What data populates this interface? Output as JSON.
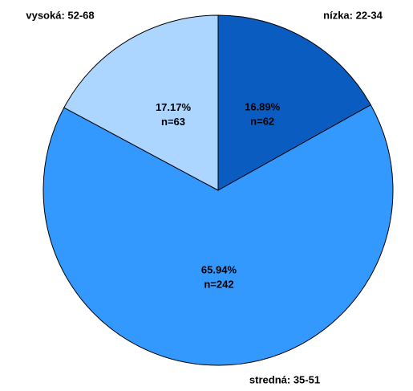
{
  "chart_data": {
    "type": "pie",
    "categories": [
      "nízka: 22-34",
      "stredná: 35-51",
      "vysoká: 52-68"
    ],
    "values": [
      16.89,
      65.94,
      17.17
    ],
    "value_labels": [
      "16.89%",
      "65.94%",
      "17.17%"
    ],
    "counts": [
      62,
      242,
      63
    ],
    "count_labels": [
      "n=62",
      "n=242",
      "n=63"
    ],
    "colors": [
      "#0b5cc0",
      "#3399ff",
      "#acd5ff"
    ]
  }
}
